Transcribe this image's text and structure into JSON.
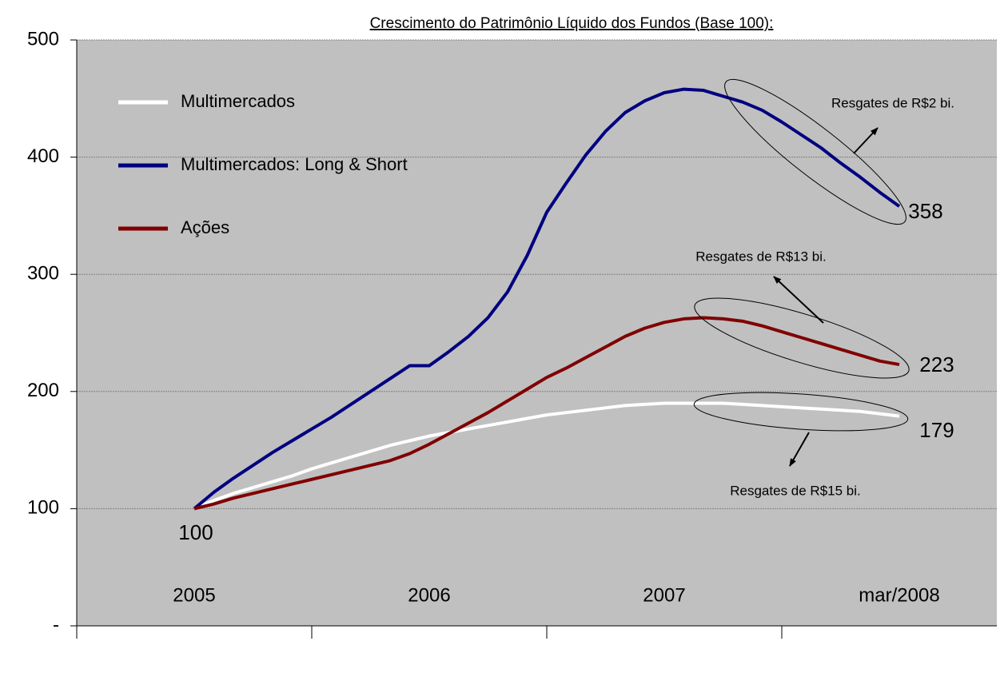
{
  "chart_data": {
    "type": "line",
    "title": "Crescimento do Patrimônio Líquido dos Fundos (Base 100):",
    "categories": [
      "2005",
      null,
      null,
      null,
      null,
      null,
      null,
      null,
      null,
      null,
      null,
      null,
      "2006",
      null,
      null,
      null,
      null,
      null,
      null,
      null,
      null,
      null,
      null,
      null,
      "2007",
      null,
      null,
      null,
      null,
      null,
      null,
      null,
      null,
      null,
      null,
      null,
      "mar/2008"
    ],
    "series": [
      {
        "name": "Multimercados",
        "color": "#ffffff",
        "values": [
          100,
          107,
          113,
          118,
          123,
          128,
          134,
          139,
          144,
          149,
          154,
          158,
          162,
          165,
          168,
          171,
          174,
          177,
          180,
          182,
          184,
          186,
          188,
          189,
          190,
          190,
          190,
          190,
          189,
          188,
          187,
          186,
          185,
          184,
          183,
          181,
          179
        ]
      },
      {
        "name": "Multimercados: Long & Short",
        "color": "#000080",
        "values": [
          100,
          114,
          126,
          137,
          148,
          158,
          168,
          178,
          189,
          200,
          211,
          222,
          222,
          234,
          247,
          263,
          285,
          316,
          353,
          378,
          402,
          422,
          438,
          448,
          455,
          458,
          457,
          452,
          447,
          440,
          430,
          419,
          408,
          395,
          383,
          370,
          358
        ]
      },
      {
        "name": "Ações",
        "color": "#800000",
        "values": [
          100,
          104,
          109,
          113,
          117,
          121,
          125,
          129,
          133,
          137,
          141,
          147,
          155,
          164,
          173,
          182,
          192,
          202,
          212,
          220,
          229,
          238,
          247,
          254,
          259,
          262,
          263,
          262,
          260,
          256,
          251,
          246,
          241,
          236,
          231,
          226,
          223
        ]
      }
    ],
    "ylim": [
      0,
      500
    ],
    "yticks": [
      {
        "value": 0,
        "label": "-"
      },
      100,
      200,
      300,
      400,
      500
    ],
    "grid": true,
    "legend": "upper-left",
    "background": "#c0c0c0",
    "annotations": [
      {
        "text": "Resgates de R$2 bi.",
        "series": 1
      },
      {
        "text": "Resgates de R$13 bi.",
        "series": 2
      },
      {
        "text": "Resgates de R$15 bi.",
        "series": 0
      }
    ]
  }
}
